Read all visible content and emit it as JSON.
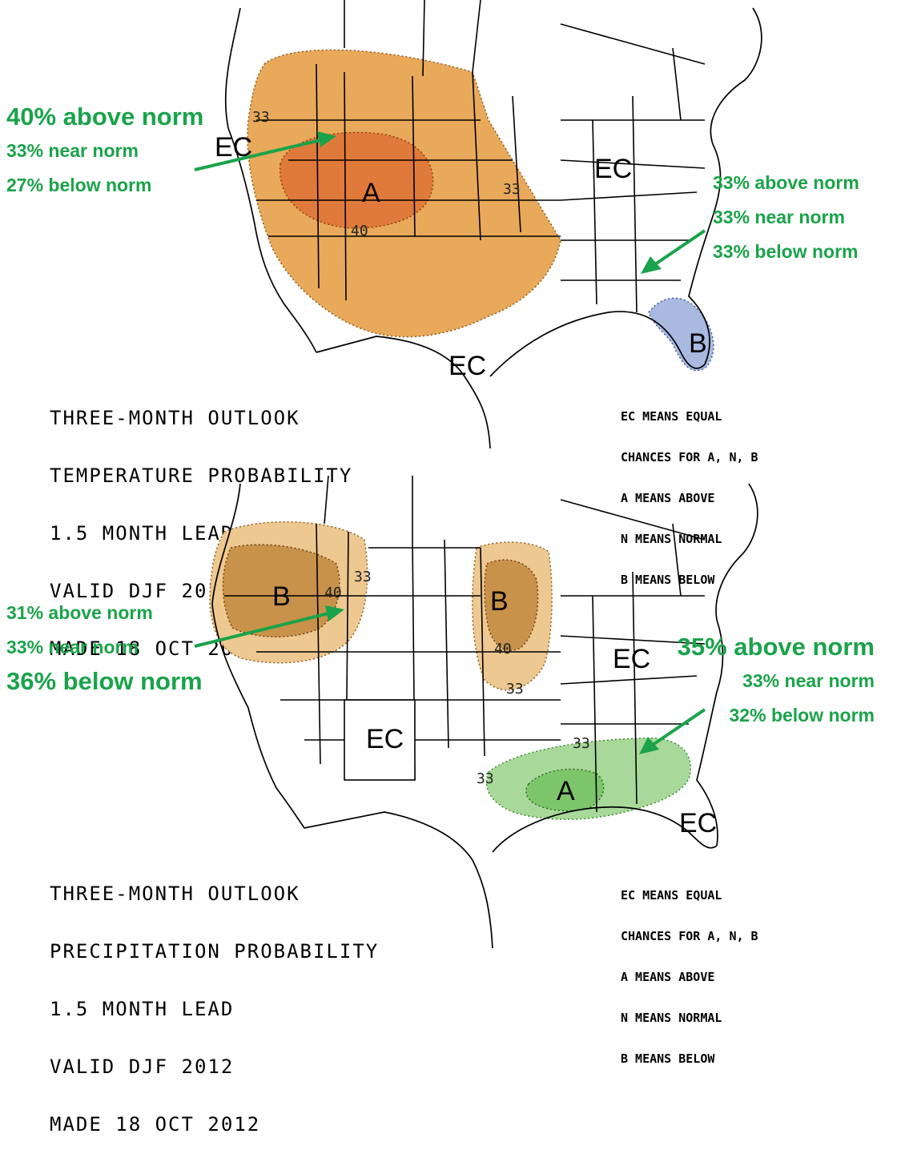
{
  "temperature_panel": {
    "title_lines": [
      "THREE-MONTH OUTLOOK",
      "TEMPERATURE PROBABILITY",
      "1.5 MONTH LEAD",
      "VALID DJF 2012",
      "MADE 18 OCT 2012"
    ],
    "legend_lines": [
      "EC MEANS EQUAL",
      "CHANCES FOR A, N, B",
      "A MEANS ABOVE",
      "N MEANS NORMAL",
      "B MEANS BELOW"
    ],
    "zone_labels": {
      "ec_west": "EC",
      "ec_east": "EC",
      "ec_south": "EC",
      "above": "A",
      "below": "B"
    },
    "contour_labels": {
      "c33_nw": "33",
      "c33_e": "33",
      "c40": "40"
    },
    "annotation_west": {
      "above": "40% above norm",
      "near": "33% near norm",
      "below": "27% below norm"
    },
    "annotation_east": {
      "above": "33% above norm",
      "near": "33% near norm",
      "below": "33% below norm"
    },
    "colors": {
      "above_33": "#e8a95a",
      "above_40": "#e07a3a",
      "below_33": "#a9b9e0",
      "arrow": "#1aa34a"
    }
  },
  "precipitation_panel": {
    "title_lines": [
      "THREE-MONTH OUTLOOK",
      "PRECIPITATION PROBABILITY",
      "1.5 MONTH LEAD",
      "VALID DJF 2012",
      "MADE 18 OCT 2012"
    ],
    "legend_lines": [
      "EC MEANS EQUAL",
      "CHANCES FOR A, N, B",
      "A MEANS ABOVE",
      "N MEANS NORMAL",
      "B MEANS BELOW"
    ],
    "zone_labels": {
      "below_nw": "B",
      "below_mw": "B",
      "above_se": "A",
      "ec_sw": "EC",
      "ec_ne": "EC",
      "ec_fl": "EC"
    },
    "contour_labels": {
      "c33_nw": "33",
      "c40_nw": "40",
      "c40_mw": "40",
      "c33_mw": "33",
      "c33_se1": "33",
      "c33_se2": "33"
    },
    "annotation_west": {
      "above": "31% above norm",
      "near": "33% near norm",
      "below": "36% below norm"
    },
    "annotation_east": {
      "above": "35% above norm",
      "near": "33% near norm",
      "below": "32% below norm"
    },
    "colors": {
      "below_33": "#edc890",
      "below_40": "#c9924a",
      "above_33": "#a9d99a",
      "above_40": "#7cc56a",
      "arrow": "#1aa34a"
    }
  }
}
